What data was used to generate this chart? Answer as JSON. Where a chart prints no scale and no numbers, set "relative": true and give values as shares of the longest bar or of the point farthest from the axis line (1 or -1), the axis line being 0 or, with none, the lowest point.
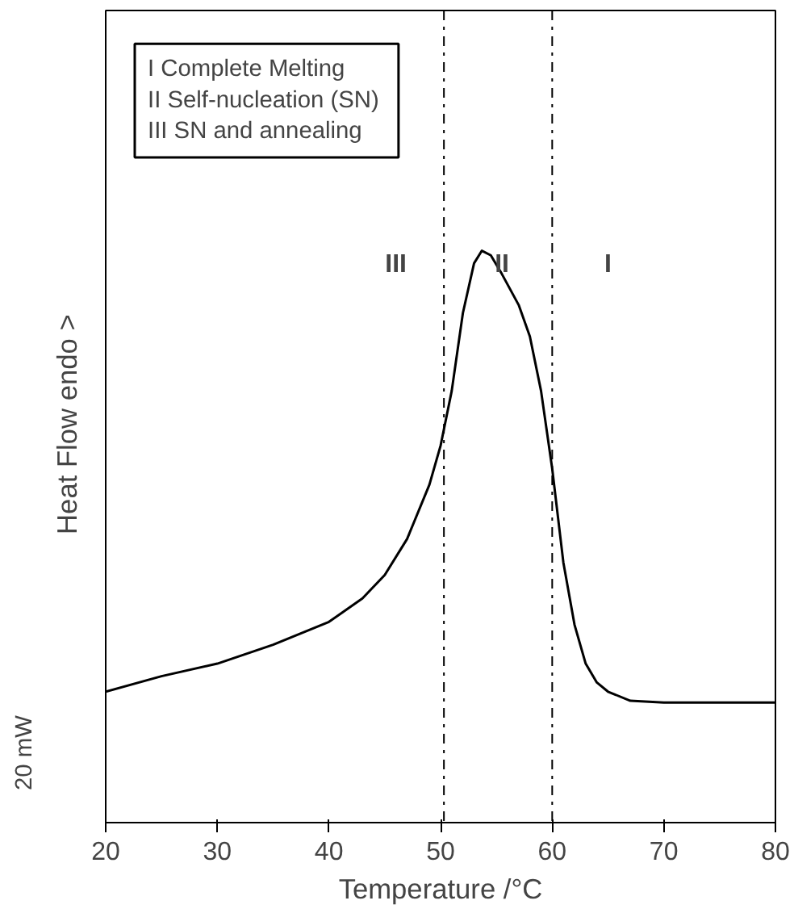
{
  "chart_data": {
    "type": "line",
    "relative": true,
    "xlabel": "Temperature /°C",
    "ylabel": "Heat Flow   endo >",
    "x": [
      20,
      25,
      30,
      35,
      40,
      43,
      45,
      47,
      49,
      50,
      51,
      52,
      53,
      53.7,
      54.5,
      55.5,
      57,
      58,
      59,
      60,
      61,
      62,
      63,
      64,
      65,
      67,
      70,
      80
    ],
    "series": [
      {
        "color": "#000000",
        "values": [
          0.229,
          0.256,
          0.278,
          0.311,
          0.351,
          0.392,
          0.433,
          0.496,
          0.591,
          0.659,
          0.755,
          0.891,
          0.978,
          1.0,
          0.992,
          0.959,
          0.905,
          0.85,
          0.755,
          0.619,
          0.455,
          0.346,
          0.278,
          0.245,
          0.229,
          0.213,
          0.21,
          0.21
        ]
      }
    ],
    "xlim": [
      20,
      80
    ],
    "xticks": [
      20,
      30,
      40,
      50,
      60,
      70,
      80
    ],
    "tick_labels": "x",
    "grid": false,
    "line_style": "solid",
    "ref_lines": [
      {
        "axis": "x",
        "value": 50.3,
        "label": null,
        "line_style": "dashdot",
        "color": "#000000"
      },
      {
        "axis": "x",
        "value": 60,
        "label": null,
        "line_style": "dashdot",
        "color": "#000000"
      }
    ],
    "annotations": [
      "I  Complete Melting",
      "II  Self-nucleation (SN)",
      "III SN and annealing",
      "III",
      "II",
      "I",
      "20 mW"
    ]
  }
}
